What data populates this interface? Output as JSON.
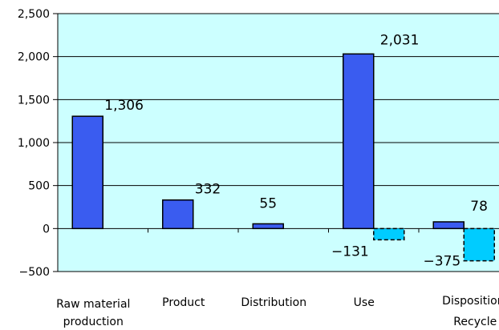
{
  "chart_data": {
    "type": "bar",
    "categories": [
      [
        "Raw material",
        "production"
      ],
      [
        "Product"
      ],
      [
        "Distribution"
      ],
      [
        "Use"
      ],
      [
        "Disposition/",
        "Recycle"
      ]
    ],
    "series": [
      {
        "values": [
          1306,
          332,
          55,
          2031,
          78
        ],
        "color": "#3a5cf0",
        "style": "solid"
      },
      {
        "values": [
          null,
          null,
          null,
          -131,
          -375
        ],
        "color": "#00ccff",
        "style": "dashed"
      }
    ],
    "data_labels": [
      [
        "1,306",
        "332",
        "55",
        "2,031",
        "78"
      ],
      [
        null,
        null,
        null,
        "−131",
        "−375"
      ]
    ],
    "y_ticks": [
      "2,500",
      "2,000",
      "1,500",
      "1,000",
      "500",
      "0",
      "−500"
    ],
    "y_tick_values": [
      2500,
      2000,
      1500,
      1000,
      500,
      0,
      -500
    ],
    "ylim": [
      -500,
      2500
    ],
    "plot_background": "#ccffff",
    "grid": true
  }
}
